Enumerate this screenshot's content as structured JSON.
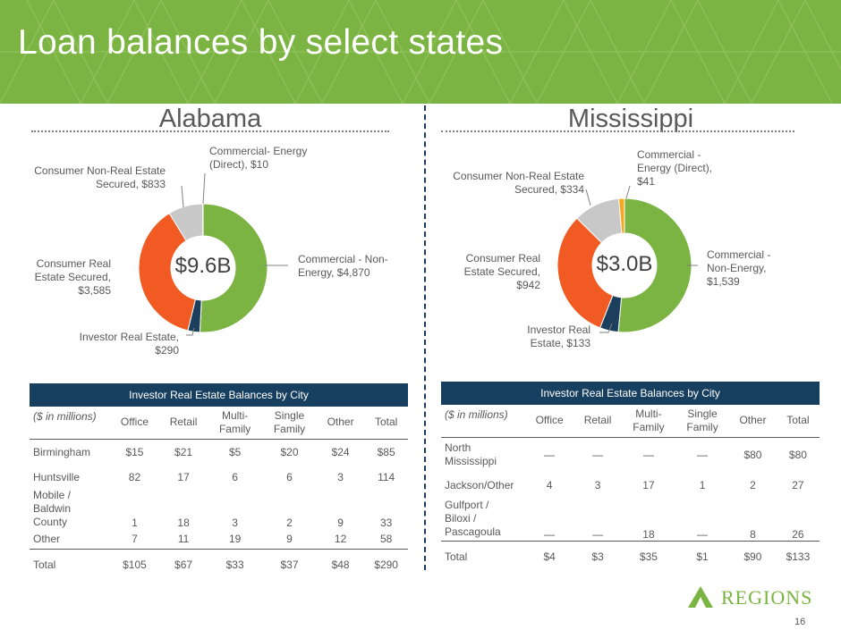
{
  "page": {
    "title": "Loan balances by select states",
    "page_number": "16",
    "logo_text": "REGIONS"
  },
  "colors": {
    "green": "#7bb442",
    "navy": "#1b3f5c",
    "orange": "#f15a22",
    "gray": "#c8c8c8",
    "gold": "#f7a823",
    "header_navy": "#173f5f"
  },
  "alabama": {
    "title": "Alabama",
    "center_label": "$9.6B",
    "labels": {
      "commercial_non_energy": "Commercial - Non-\nEnergy, $4,870",
      "investor_real_estate": "Investor Real Estate,\n$290",
      "consumer_real_estate": "Consumer Real\nEstate Secured,\n$3,585",
      "consumer_non_real_estate": "Consumer Non-Real Estate\nSecured, $833",
      "commercial_energy": "Commercial- Energy\n(Direct), $10"
    },
    "table": {
      "header": "Investor Real Estate Balances by City",
      "units": "($ in millions)",
      "columns": [
        "Office",
        "Retail",
        "Multi-\nFamily",
        "Single\nFamily",
        "Other",
        "Total"
      ],
      "rows": [
        {
          "city": "Birmingham",
          "values": [
            "$15",
            "$21",
            "$5",
            "$20",
            "$24",
            "$85"
          ]
        },
        {
          "city": "Huntsville",
          "values": [
            "82",
            "17",
            "6",
            "6",
            "3",
            "114"
          ]
        },
        {
          "city": "Mobile /\nBaldwin County",
          "values": [
            "1",
            "18",
            "3",
            "2",
            "9",
            "33"
          ]
        },
        {
          "city": "Other",
          "values": [
            "7",
            "11",
            "19",
            "9",
            "12",
            "58"
          ]
        }
      ],
      "total": {
        "city": "Total",
        "values": [
          "$105",
          "$67",
          "$33",
          "$37",
          "$48",
          "$290"
        ]
      }
    }
  },
  "mississippi": {
    "title": "Mississippi",
    "center_label": "$3.0B",
    "labels": {
      "commercial_non_energy": "Commercial -\nNon-Energy,\n$1,539",
      "investor_real_estate": "Investor Real\nEstate, $133",
      "consumer_real_estate": "Consumer Real\nEstate Secured,\n$942",
      "consumer_non_real_estate": "Consumer Non-Real Estate\nSecured, $334",
      "commercial_energy": "Commercial -\nEnergy (Direct),\n$41"
    },
    "table": {
      "header": "Investor Real Estate Balances by City",
      "units": "($ in millions)",
      "columns": [
        "Office",
        "Retail",
        "Multi-\nFamily",
        "Single\nFamily",
        "Other",
        "Total"
      ],
      "rows": [
        {
          "city": "North\nMississippi",
          "values": [
            "—",
            "—",
            "—",
            "—",
            "$80",
            "$80"
          ]
        },
        {
          "city": "Jackson/Other",
          "values": [
            "4",
            "3",
            "17",
            "1",
            "2",
            "27"
          ]
        },
        {
          "city": "Gulfport /\nBiloxi /\nPascagoula",
          "values": [
            "—",
            "—",
            "18",
            "—",
            "8",
            "26"
          ]
        }
      ],
      "total": {
        "city": "Total",
        "values": [
          "$4",
          "$3",
          "$35",
          "$1",
          "$90",
          "$133"
        ]
      }
    }
  },
  "chart_data": [
    {
      "type": "pie",
      "title": "Alabama",
      "center_label": "$9.6B",
      "categories": [
        "Commercial - Non-Energy",
        "Investor Real Estate",
        "Consumer Real Estate Secured",
        "Consumer Non-Real Estate Secured",
        "Commercial- Energy (Direct)"
      ],
      "values": [
        4870,
        290,
        3585,
        833,
        10
      ],
      "colors": [
        "#7bb442",
        "#1b3f5c",
        "#f15a22",
        "#c8c8c8",
        "#f7a823"
      ]
    },
    {
      "type": "pie",
      "title": "Mississippi",
      "center_label": "$3.0B",
      "categories": [
        "Commercial - Non-Energy",
        "Investor Real Estate",
        "Consumer Real Estate Secured",
        "Consumer Non-Real Estate Secured",
        "Commercial - Energy (Direct)"
      ],
      "values": [
        1539,
        133,
        942,
        334,
        41
      ],
      "colors": [
        "#7bb442",
        "#1b3f5c",
        "#f15a22",
        "#c8c8c8",
        "#f7a823"
      ]
    }
  ]
}
